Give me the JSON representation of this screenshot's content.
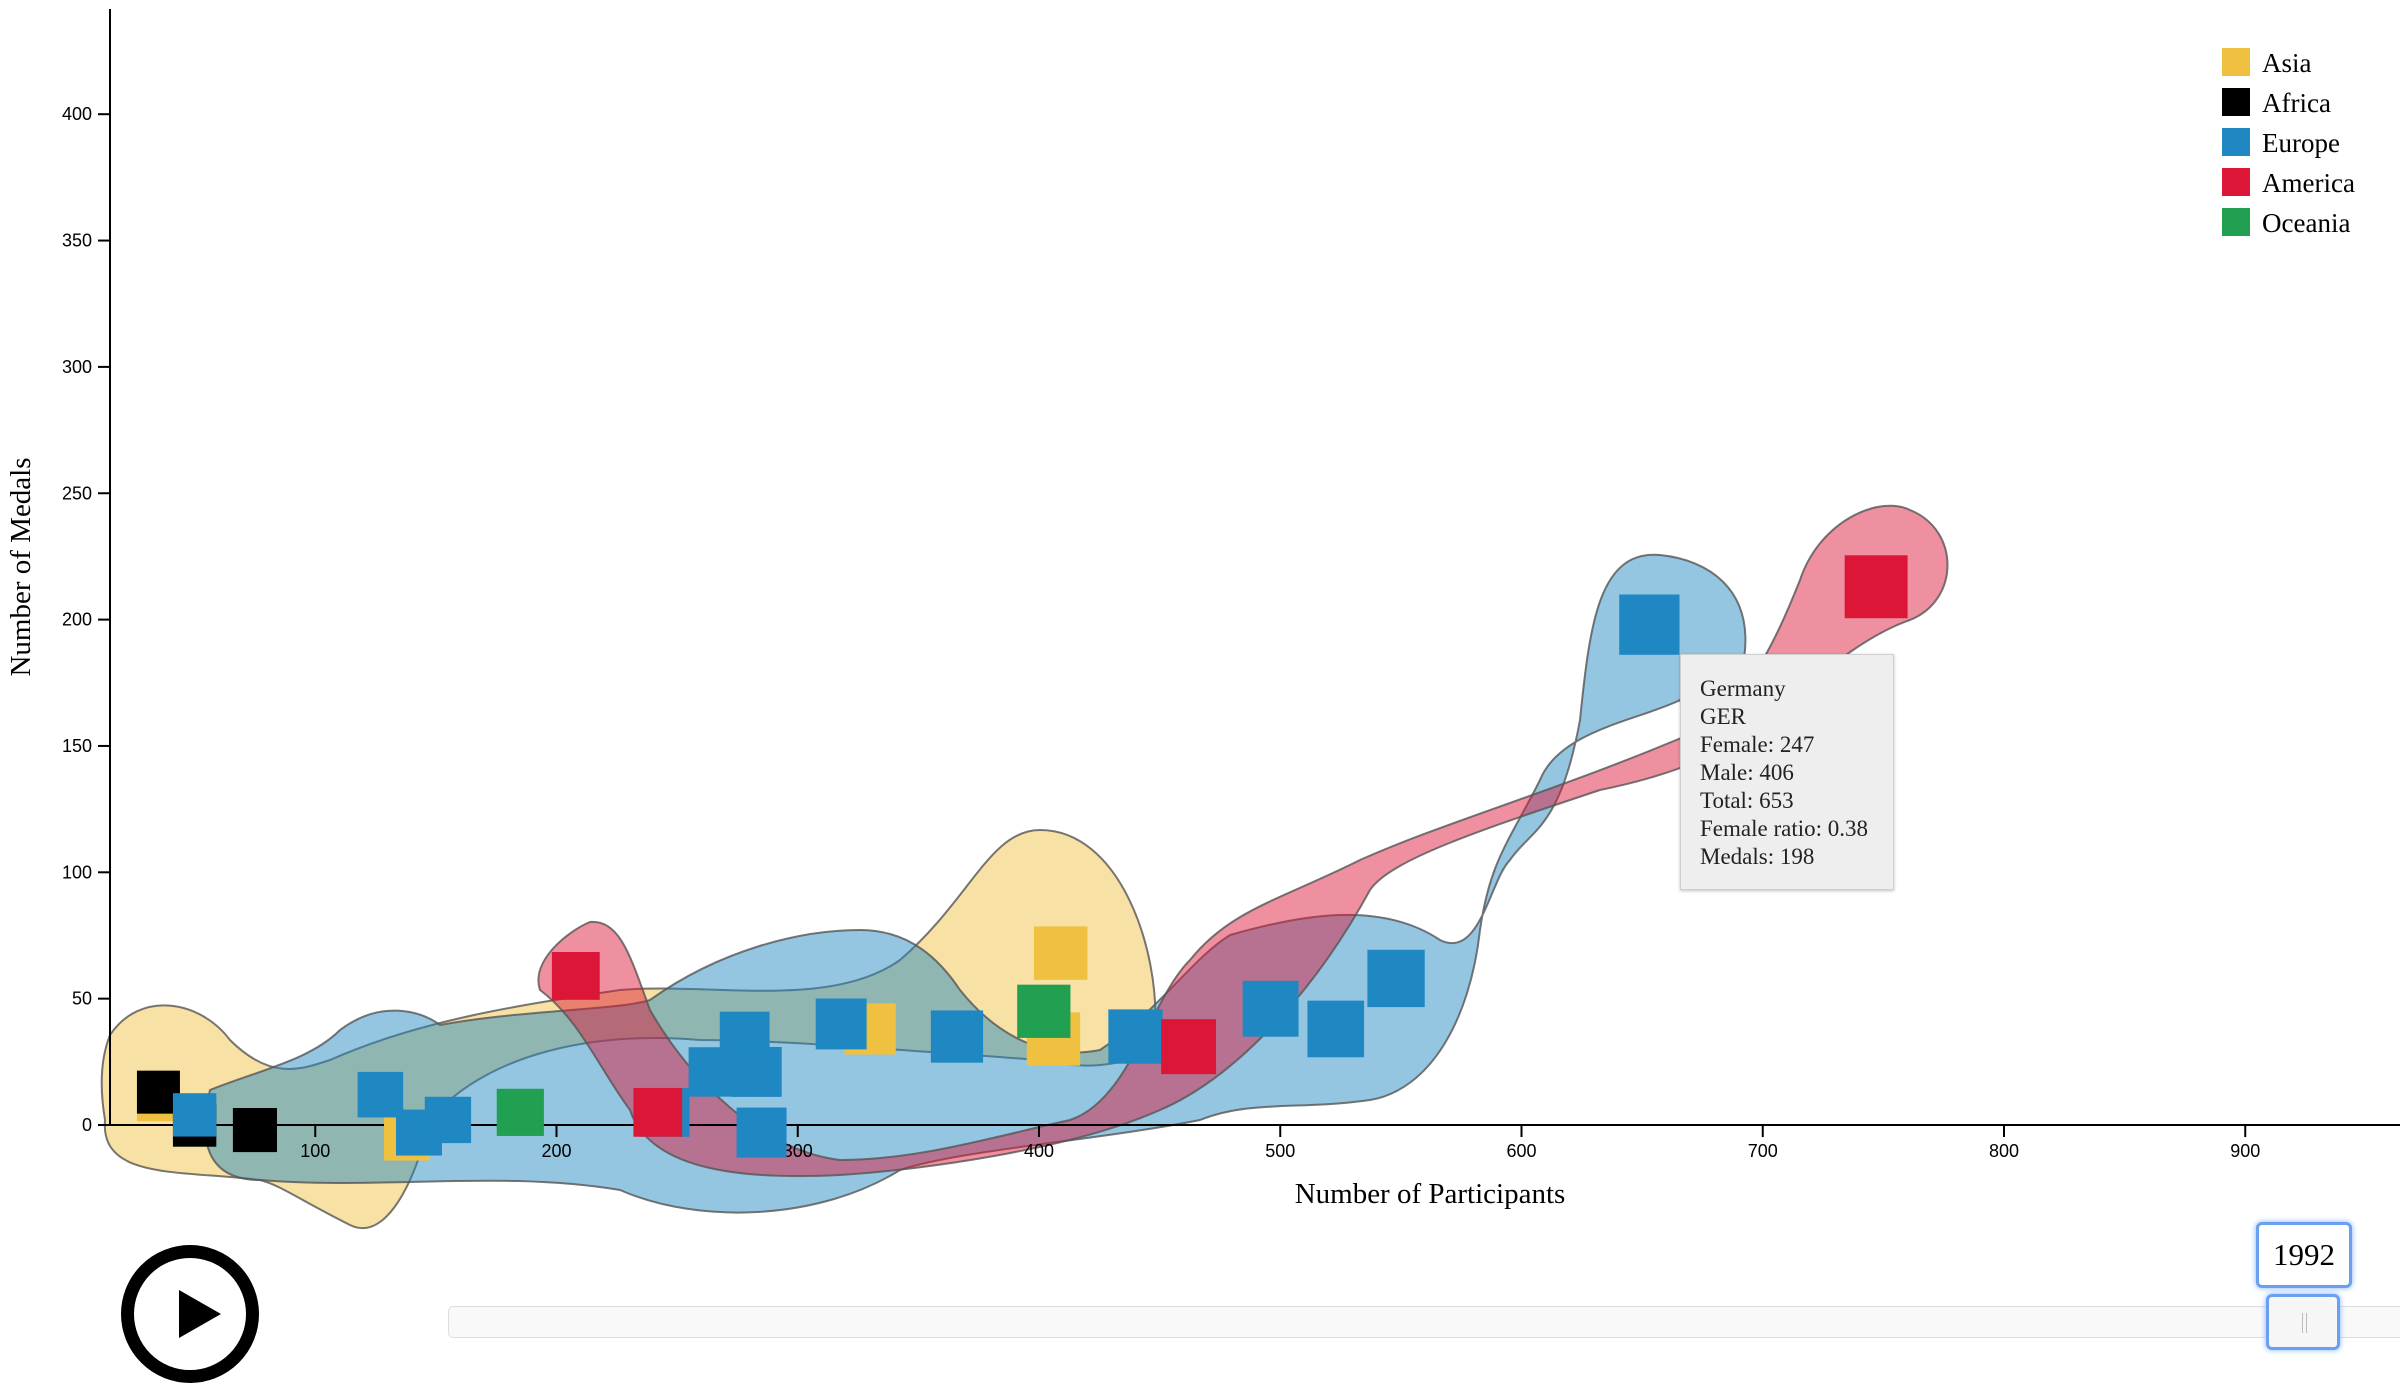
{
  "chart_data": {
    "type": "scatter",
    "xlabel": "Number of Participants",
    "ylabel": "Number of Medals",
    "xlim": [
      0,
      1000
    ],
    "ylim": [
      0,
      440
    ],
    "x_ticks": [
      100,
      200,
      300,
      400,
      500,
      600,
      700,
      800,
      900
    ],
    "y_ticks": [
      0,
      50,
      100,
      150,
      200,
      250,
      300,
      350,
      400
    ],
    "legend": {
      "placement": "top-right",
      "entries": [
        {
          "name": "Asia",
          "color": "#f0c040"
        },
        {
          "name": "Africa",
          "color": "#000000"
        },
        {
          "name": "Europe",
          "color": "#1f88c2"
        },
        {
          "name": "America",
          "color": "#dc1636"
        },
        {
          "name": "Oceania",
          "color": "#20a050"
        }
      ]
    },
    "points": [
      {
        "continent": "Asia",
        "x": 35,
        "y": 10
      },
      {
        "continent": "Asia",
        "x": 138,
        "y": -5
      },
      {
        "continent": "Asia",
        "x": 330,
        "y": 38
      },
      {
        "continent": "Asia",
        "x": 406,
        "y": 34
      },
      {
        "continent": "Asia",
        "x": 409,
        "y": 68
      },
      {
        "continent": "Africa",
        "x": 50,
        "y": 0
      },
      {
        "continent": "Africa",
        "x": 75,
        "y": -2
      },
      {
        "continent": "Africa",
        "x": 35,
        "y": 13
      },
      {
        "continent": "Europe",
        "x": 50,
        "y": 4
      },
      {
        "continent": "Europe",
        "x": 127,
        "y": 12
      },
      {
        "continent": "Europe",
        "x": 143,
        "y": -3
      },
      {
        "continent": "Europe",
        "x": 155,
        "y": 2
      },
      {
        "continent": "Europe",
        "x": 245,
        "y": 5
      },
      {
        "continent": "Europe",
        "x": 265,
        "y": 21
      },
      {
        "continent": "Europe",
        "x": 278,
        "y": 35
      },
      {
        "continent": "Europe",
        "x": 283,
        "y": 21
      },
      {
        "continent": "Europe",
        "x": 285,
        "y": -3
      },
      {
        "continent": "Europe",
        "x": 318,
        "y": 40
      },
      {
        "continent": "Europe",
        "x": 366,
        "y": 35
      },
      {
        "continent": "Europe",
        "x": 440,
        "y": 35
      },
      {
        "continent": "Europe",
        "x": 496,
        "y": 46
      },
      {
        "continent": "Europe",
        "x": 523,
        "y": 38
      },
      {
        "continent": "Europe",
        "x": 548,
        "y": 58
      },
      {
        "continent": "Europe",
        "x": 653,
        "y": 198
      },
      {
        "continent": "America",
        "x": 208,
        "y": 59
      },
      {
        "continent": "America",
        "x": 242,
        "y": 5
      },
      {
        "continent": "America",
        "x": 462,
        "y": 31
      },
      {
        "continent": "America",
        "x": 747,
        "y": 213
      },
      {
        "continent": "Oceania",
        "x": 185,
        "y": 5
      },
      {
        "continent": "Oceania",
        "x": 402,
        "y": 45
      }
    ]
  },
  "tooltip": {
    "country": "Germany",
    "code": "GER",
    "female": "Female: 247",
    "male": "Male: 406",
    "total": "Total: 653",
    "female_ratio": "Female ratio: 0.38",
    "medals": "Medals: 198"
  },
  "controls": {
    "year": "1992",
    "play_icon": "play-icon"
  }
}
